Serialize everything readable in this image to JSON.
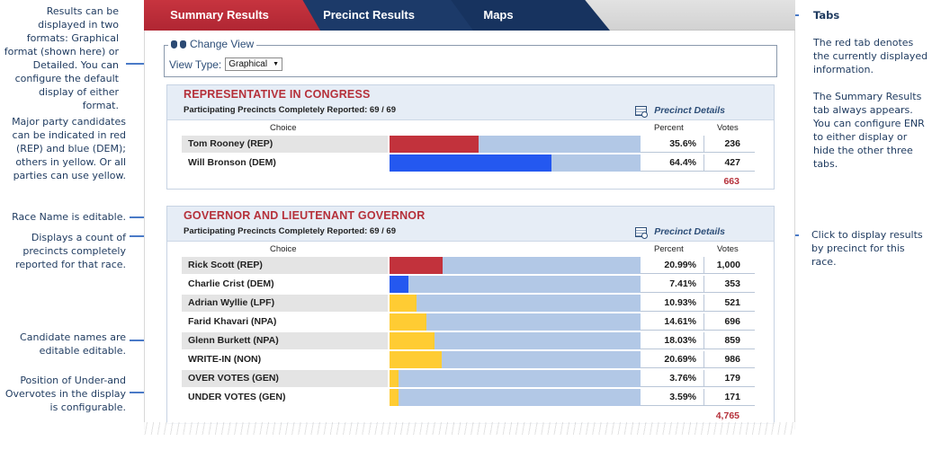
{
  "tabs": [
    {
      "label": "Summary Results",
      "active": true
    },
    {
      "label": "Precinct Results",
      "active": false
    },
    {
      "label": "Maps",
      "active": false
    }
  ],
  "change_view": {
    "legend": "Change View",
    "view_type_label": "View Type:",
    "selected": "Graphical"
  },
  "colors": {
    "rep": "#c2323c",
    "dem": "#2458f0",
    "other": "#ffcc33",
    "bar_bg": "#b2c8e6"
  },
  "races": [
    {
      "name": "REPRESENTATIVE IN CONGRESS",
      "precincts": "Participating Precincts Completely Reported: 69 / 69",
      "precinct_details": "Precinct Details",
      "header_choice": "Choice",
      "header_percent": "Percent",
      "header_votes": "Votes",
      "candidates": [
        {
          "name": "Tom Rooney (REP)",
          "percent": "35.6%",
          "share": 0.356,
          "votes": "236",
          "party": "rep"
        },
        {
          "name": "Will Bronson (DEM)",
          "percent": "64.4%",
          "share": 0.644,
          "votes": "427",
          "party": "dem"
        }
      ],
      "total": "663"
    },
    {
      "name": "GOVERNOR AND LIEUTENANT GOVERNOR",
      "precincts": "Participating Precincts Completely Reported: 69 / 69",
      "precinct_details": "Precinct Details",
      "header_choice": "Choice",
      "header_percent": "Percent",
      "header_votes": "Votes",
      "candidates": [
        {
          "name": "Rick Scott (REP)",
          "percent": "20.99%",
          "share": 0.2099,
          "votes": "1,000",
          "party": "rep"
        },
        {
          "name": "Charlie Crist (DEM)",
          "percent": "7.41%",
          "share": 0.0741,
          "votes": "353",
          "party": "dem"
        },
        {
          "name": "Adrian Wyllie (LPF)",
          "percent": "10.93%",
          "share": 0.1093,
          "votes": "521",
          "party": "other"
        },
        {
          "name": "Farid Khavari (NPA)",
          "percent": "14.61%",
          "share": 0.1461,
          "votes": "696",
          "party": "other"
        },
        {
          "name": "Glenn Burkett (NPA)",
          "percent": "18.03%",
          "share": 0.1803,
          "votes": "859",
          "party": "other"
        },
        {
          "name": "WRITE-IN (NON)",
          "percent": "20.69%",
          "share": 0.2069,
          "votes": "986",
          "party": "other"
        },
        {
          "name": "OVER VOTES (GEN)",
          "percent": "3.76%",
          "share": 0.0376,
          "votes": "179",
          "party": "other"
        },
        {
          "name": "UNDER VOTES (GEN)",
          "percent": "3.59%",
          "share": 0.0359,
          "votes": "171",
          "party": "other"
        }
      ],
      "total": "4,765"
    }
  ],
  "annotations": {
    "formats": "Results can be displayed in two formats: Graphical format (shown here) or Detailed. You can configure the default display of either format.",
    "party": "Major party candidates can be indicated in red (REP) and blue (DEM); others in yellow. Or all parties can use yellow.",
    "race_name": "Race Name is editable.",
    "count": "Displays a count of precincts completely reported for that race.",
    "candidate_names": "Candidate names are editable editable.",
    "overvotes": "Position of Under-and Overvotes in the display is configurable.",
    "tabs_title": "Tabs",
    "tabs_red": "The red tab denotes the currently displayed information.",
    "tabs_summary": "The Summary Results tab always appears. You can configure ENR to either display or hide the other three tabs.",
    "click": "Click to display results by precinct for this race."
  }
}
